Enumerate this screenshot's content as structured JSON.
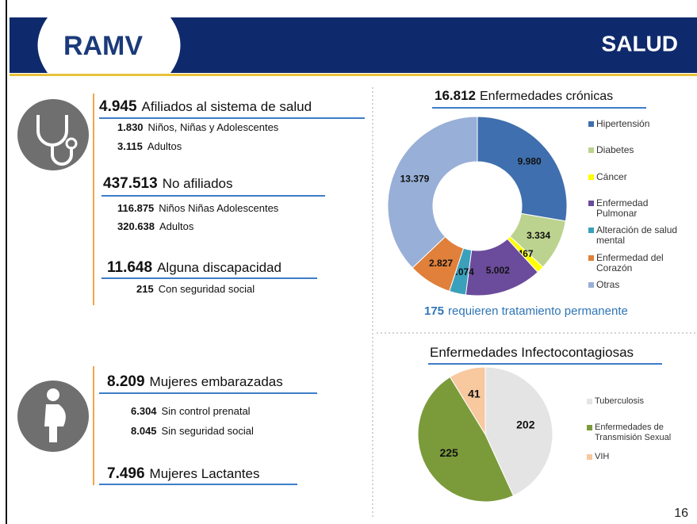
{
  "header": {
    "logo": "RAMV",
    "title": "SALUD"
  },
  "stats": [
    {
      "number": "4.945",
      "label": "Afiliados al sistema de salud",
      "details": [
        {
          "number": "1.830",
          "label": "Niños, Niñas y  Adolescentes"
        },
        {
          "number": "3.115",
          "label": "Adultos"
        }
      ]
    },
    {
      "number": "437.513",
      "label": "No afiliados",
      "details": [
        {
          "number": "116.875",
          "label": "Niños Niñas Adolescentes"
        },
        {
          "number": "320.638",
          "label": "Adultos"
        }
      ]
    },
    {
      "number": "11.648",
      "label": "Alguna discapacidad",
      "details": [
        {
          "number": "215",
          "label": "Con seguridad social"
        }
      ]
    },
    {
      "number": "8.209",
      "label": "Mujeres embarazadas",
      "details": [
        {
          "number": "6.304",
          "label": "Sin control prenatal"
        },
        {
          "number": "8.045",
          "label": "Sin seguridad social"
        }
      ]
    },
    {
      "number": "7.496",
      "label": "Mujeres Lactantes",
      "details": []
    }
  ],
  "chart_data": [
    {
      "type": "donut",
      "title_number": "16.812",
      "title": "Enfermedades crónicas",
      "categories": [
        "Hipertensión",
        "Diabetes",
        "Cáncer",
        "Enfermedad Pulmonar",
        "Alteración de salud mental",
        "Enfermedad del Corazón",
        "Otras"
      ],
      "values": [
        9980,
        3334,
        467,
        5002,
        1074,
        2827,
        13379
      ],
      "value_labels": [
        "9.980",
        "3.334",
        "467",
        "5.002",
        "1.074",
        "2.827",
        "13.379"
      ],
      "colors": [
        "#3f6fae",
        "#bcd38f",
        "#ffff00",
        "#6b4b9b",
        "#3aa0bb",
        "#e0803a",
        "#98afd7"
      ],
      "annotation_number": "175",
      "annotation": "requieren tratamiento permanente"
    },
    {
      "type": "pie",
      "title": "Enfermedades Infectocontagiosas",
      "categories": [
        "Tuberculosis",
        "Enfermedades de Transmisión Sexual",
        "VIH"
      ],
      "values": [
        202,
        225,
        41
      ],
      "colors": [
        "#e4e4e4",
        "#7b9b3b",
        "#f8c89e"
      ]
    }
  ],
  "page_number": "16"
}
